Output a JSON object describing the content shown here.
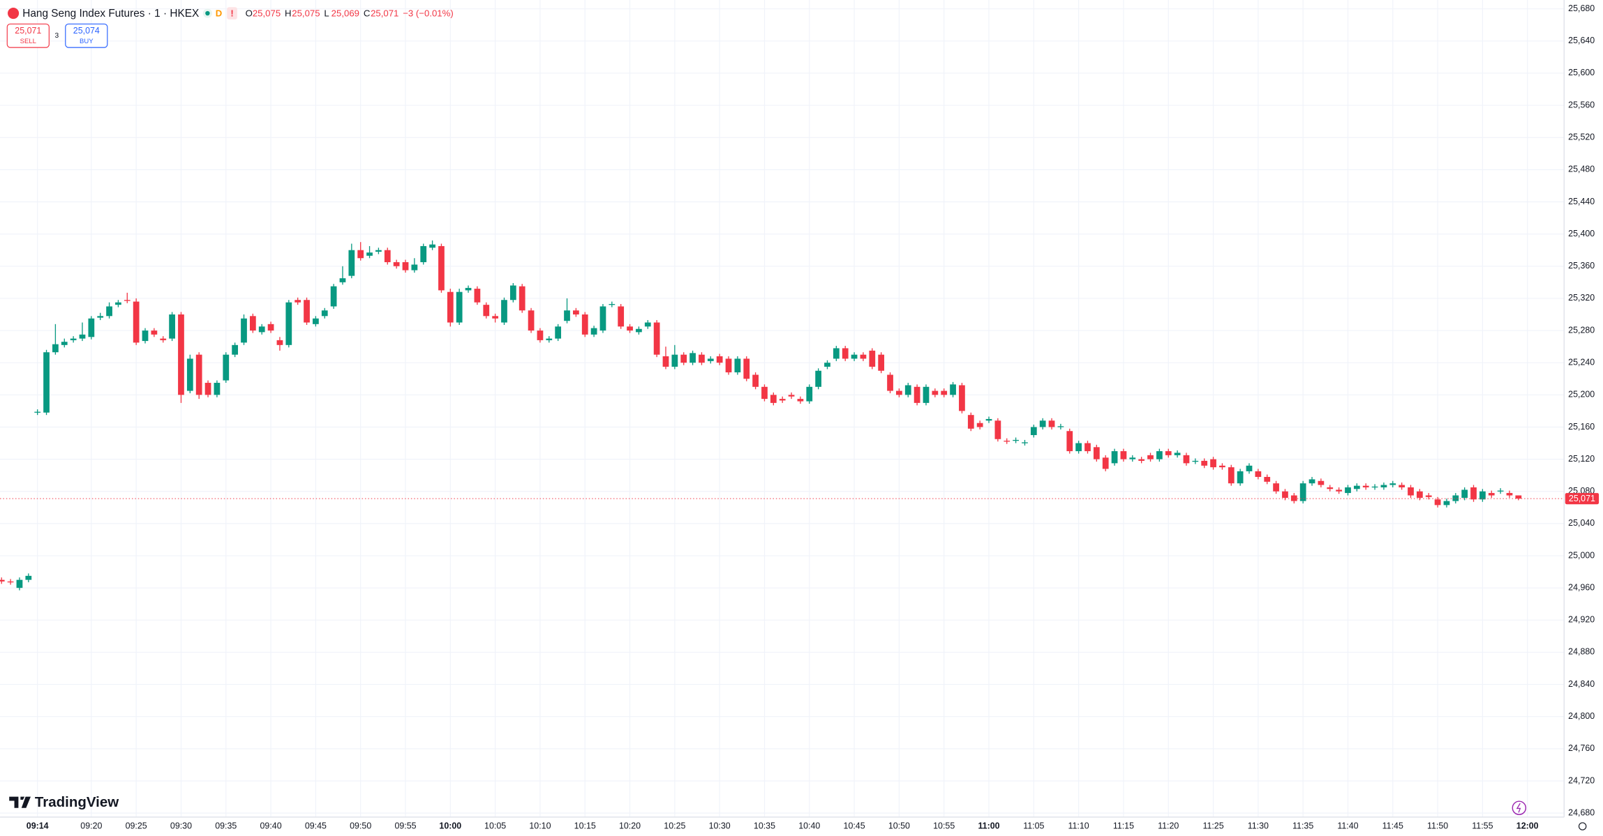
{
  "header": {
    "indicator_d": "D",
    "indicator_alert": "!",
    "ohlc": [
      {
        "key": "O",
        "value": "25,075"
      },
      {
        "key": "H",
        "value": "25,075"
      },
      {
        "key": "L",
        "value": "25,069"
      },
      {
        "key": "C",
        "value": "25,071"
      }
    ],
    "change": "−3 (−0.01%)",
    "sell_price": "25,071",
    "sell_label": "SELL",
    "spread": "3",
    "buy_price": "25,074",
    "buy_label": "BUY",
    "logo": "TradingView"
  },
  "chart_data": {
    "type": "candlestick",
    "title": "Hang Seng Index Futures · 1 · HKEX",
    "up_color": "#089981",
    "down_color": "#f23645",
    "grid": true,
    "categories": [
      null,
      null,
      null,
      null,
      "09:14",
      null,
      null,
      null,
      null,
      null,
      "09:20",
      null,
      null,
      null,
      null,
      "09:25",
      null,
      null,
      null,
      null,
      "09:30",
      null,
      null,
      null,
      null,
      "09:35",
      null,
      null,
      null,
      null,
      "09:40",
      null,
      null,
      null,
      null,
      "09:45",
      null,
      null,
      null,
      null,
      "09:50",
      null,
      null,
      null,
      null,
      "09:55",
      null,
      null,
      null,
      null,
      "10:00",
      null,
      null,
      null,
      null,
      "10:05",
      null,
      null,
      null,
      null,
      "10:10",
      null,
      null,
      null,
      null,
      "10:15",
      null,
      null,
      null,
      null,
      "10:20",
      null,
      null,
      null,
      null,
      "10:25",
      null,
      null,
      null,
      null,
      "10:30",
      null,
      null,
      null,
      null,
      "10:35",
      null,
      null,
      null,
      null,
      "10:40",
      null,
      null,
      null,
      null,
      "10:45",
      null,
      null,
      null,
      null,
      "10:50",
      null,
      null,
      null,
      null,
      "10:55",
      null,
      null,
      null,
      null,
      "11:00",
      null,
      null,
      null,
      null,
      "11:05",
      null,
      null,
      null,
      null,
      "11:10",
      null,
      null,
      null,
      null,
      "11:15",
      null,
      null,
      null,
      null,
      "11:20",
      null,
      null,
      null,
      null,
      "11:25",
      null,
      null,
      null,
      null,
      "11:30",
      null,
      null,
      null,
      null,
      "11:35",
      null,
      null,
      null,
      null,
      "11:40",
      null,
      null,
      null,
      null,
      "11:45",
      null,
      null,
      null,
      null,
      "11:50",
      null,
      null,
      null,
      null,
      "11:55",
      null,
      null,
      null,
      null,
      "12:00"
    ],
    "open": [
      24970,
      24968,
      24960,
      24970,
      25178,
      25178,
      25253,
      25262,
      25268,
      25270,
      25272,
      25296,
      25298,
      25312,
      25318,
      25316,
      25267,
      25280,
      25270,
      25270,
      25300,
      25205,
      25250,
      25215,
      25200,
      25218,
      25250,
      25265,
      25298,
      25278,
      25288,
      25268,
      25262,
      25318,
      25318,
      25288,
      25298,
      25310,
      25340,
      25348,
      25380,
      25373,
      25378,
      25380,
      25365,
      25365,
      25355,
      25365,
      25383,
      25385,
      25328,
      25290,
      25330,
      25332,
      25312,
      25298,
      25290,
      25318,
      25335,
      25305,
      25280,
      25268,
      25270,
      25292,
      25305,
      25300,
      25275,
      25280,
      25312,
      25310,
      25285,
      25278,
      25285,
      25290,
      25248,
      25235,
      25250,
      25240,
      25250,
      25242,
      25248,
      25245,
      25228,
      25245,
      25225,
      25210,
      25200,
      25195,
      25200,
      25195,
      25192,
      25210,
      25235,
      25245,
      25258,
      25245,
      25250,
      25255,
      25250,
      25225,
      25205,
      25200,
      25210,
      25190,
      25205,
      25205,
      25200,
      25212,
      25175,
      25165,
      25168,
      25168,
      25143,
      25143,
      25140,
      25150,
      25160,
      25168,
      25160,
      25155,
      25130,
      25140,
      25135,
      25122,
      25115,
      25130,
      25120,
      25120,
      25125,
      25120,
      25130,
      25125,
      25125,
      25117,
      25118,
      25120,
      25112,
      25110,
      25090,
      25105,
      25105,
      25098,
      25090,
      25080,
      25075,
      25068,
      25090,
      25093,
      25085,
      25082,
      25078,
      25083,
      25087,
      25085,
      25085,
      25088,
      25088,
      25085,
      25080,
      25075,
      25070,
      25063,
      25068,
      25072,
      25085,
      25070,
      25078,
      25080,
      25078,
      25075,
      null
    ],
    "high": [
      24973,
      24971,
      24973,
      24978,
      25182,
      25256,
      25288,
      25270,
      25273,
      25290,
      25298,
      25302,
      25315,
      25318,
      25327,
      25320,
      25283,
      25283,
      25273,
      25303,
      25303,
      25250,
      25253,
      25218,
      25218,
      25253,
      25265,
      25300,
      25301,
      25288,
      25291,
      25272,
      25318,
      25321,
      25321,
      25298,
      25308,
      25338,
      25360,
      25388,
      25390,
      25385,
      25383,
      25383,
      25368,
      25368,
      25370,
      25388,
      25392,
      25388,
      25332,
      25332,
      25336,
      25335,
      25315,
      25301,
      25321,
      25339,
      25338,
      25308,
      25283,
      25273,
      25288,
      25320,
      25308,
      25303,
      25286,
      25313,
      25316,
      25313,
      25288,
      25285,
      25293,
      25293,
      25260,
      25262,
      25253,
      25255,
      25253,
      25248,
      25251,
      25248,
      25248,
      25248,
      25228,
      25213,
      25203,
      25198,
      25203,
      25198,
      25213,
      25233,
      25243,
      25261,
      25261,
      25253,
      25253,
      25258,
      25253,
      25228,
      25208,
      25215,
      25213,
      25213,
      25208,
      25208,
      25216,
      25215,
      25178,
      25168,
      25173,
      25171,
      25146,
      25147,
      25144,
      25163,
      25171,
      25171,
      25164,
      25158,
      25143,
      25143,
      25138,
      25125,
      25133,
      25133,
      25125,
      25123,
      25128,
      25133,
      25133,
      25131,
      25128,
      25121,
      25121,
      25123,
      25115,
      25113,
      25108,
      25115,
      25108,
      25101,
      25093,
      25083,
      25078,
      25093,
      25098,
      25096,
      25088,
      25085,
      25088,
      25090,
      25090,
      25089,
      25091,
      25093,
      25091,
      25088,
      25083,
      25078,
      25073,
      25071,
      25078,
      25085,
      25088,
      25083,
      25081,
      25084,
      25081,
      25075,
      null
    ],
    "low": [
      24965,
      24964,
      24957,
      24967,
      25175,
      25175,
      25250,
      25259,
      25265,
      25267,
      25269,
      25293,
      25295,
      25309,
      25314,
      25262,
      25264,
      25272,
      25265,
      25267,
      25190,
      25202,
      25195,
      25197,
      25197,
      25215,
      25247,
      25262,
      25277,
      25275,
      25277,
      25255,
      25259,
      25312,
      25287,
      25285,
      25295,
      25307,
      25337,
      25345,
      25367,
      25370,
      25375,
      25362,
      25357,
      25352,
      25352,
      25362,
      25380,
      25327,
      25285,
      25287,
      25327,
      25312,
      25295,
      25290,
      25287,
      25315,
      25302,
      25277,
      25265,
      25265,
      25267,
      25289,
      25297,
      25272,
      25272,
      25277,
      25309,
      25282,
      25277,
      25275,
      25282,
      25247,
      25232,
      25232,
      25237,
      25237,
      25237,
      25239,
      25237,
      25225,
      25225,
      25217,
      25207,
      25192,
      25187,
      25190,
      25195,
      25189,
      25189,
      25207,
      25232,
      25242,
      25242,
      25242,
      25242,
      25232,
      25227,
      25202,
      25197,
      25197,
      25187,
      25187,
      25197,
      25197,
      25197,
      25177,
      25155,
      25157,
      25165,
      25142,
      25139,
      25140,
      25137,
      25147,
      25157,
      25157,
      25157,
      25127,
      25127,
      25127,
      25117,
      25105,
      25112,
      25117,
      25117,
      25115,
      25117,
      25117,
      25122,
      25122,
      25112,
      25114,
      25109,
      25107,
      25107,
      25087,
      25087,
      25102,
      25095,
      25089,
      25077,
      25069,
      25065,
      25065,
      25087,
      25085,
      25080,
      25077,
      25075,
      25080,
      25082,
      25082,
      25082,
      25085,
      25082,
      25072,
      25069,
      25070,
      25060,
      25060,
      25065,
      25069,
      25067,
      25067,
      25072,
      25077,
      25072,
      25069,
      null
    ],
    "close": [
      24968,
      24967,
      24970,
      24975,
      25179,
      25253,
      25263,
      25266,
      25270,
      25275,
      25295,
      25298,
      25310,
      25315,
      25317,
      25265,
      25280,
      25275,
      25268,
      25300,
      25200,
      25245,
      25200,
      25200,
      25215,
      25250,
      25262,
      25295,
      25280,
      25285,
      25280,
      25262,
      25315,
      25315,
      25290,
      25295,
      25305,
      25335,
      25345,
      25380,
      25370,
      25377,
      25380,
      25365,
      25360,
      25355,
      25362,
      25385,
      25387,
      25330,
      25290,
      25328,
      25333,
      25315,
      25298,
      25295,
      25318,
      25336,
      25305,
      25280,
      25268,
      25270,
      25285,
      25305,
      25300,
      25275,
      25283,
      25310,
      25313,
      25285,
      25280,
      25282,
      25290,
      25250,
      25235,
      25250,
      25240,
      25252,
      25240,
      25245,
      25240,
      25228,
      25245,
      25220,
      25210,
      25195,
      25190,
      25193,
      25198,
      25192,
      25210,
      25230,
      25240,
      25258,
      25245,
      25250,
      25245,
      25235,
      25230,
      25205,
      25200,
      25212,
      25190,
      25210,
      25200,
      25200,
      25213,
      25180,
      25158,
      25160,
      25170,
      25145,
      25142,
      25144,
      25141,
      25160,
      25168,
      25160,
      25161,
      25130,
      25140,
      25130,
      25120,
      25108,
      25130,
      25120,
      25122,
      25118,
      25120,
      25130,
      25125,
      25128,
      25115,
      25118,
      25112,
      25110,
      25110,
      25090,
      25105,
      25112,
      25098,
      25092,
      25080,
      25072,
      25068,
      25090,
      25095,
      25088,
      25083,
      25080,
      25085,
      25087,
      25085,
      25086,
      25088,
      25090,
      25085,
      25075,
      25072,
      25073,
      25063,
      25068,
      25075,
      25082,
      25070,
      25080,
      25075,
      25081,
      25075,
      25071,
      null
    ],
    "last_price": {
      "value": 25071,
      "label": "25,071"
    },
    "ylim": [
      24675,
      25691
    ],
    "yticks": [
      {
        "value": 24680,
        "label": "24,680"
      },
      {
        "value": 24720,
        "label": "24,720"
      },
      {
        "value": 24760,
        "label": "24,760"
      },
      {
        "value": 24800,
        "label": "24,800"
      },
      {
        "value": 24840,
        "label": "24,840"
      },
      {
        "value": 24880,
        "label": "24,880"
      },
      {
        "value": 24920,
        "label": "24,920"
      },
      {
        "value": 24960,
        "label": "24,960"
      },
      {
        "value": 25000,
        "label": "25,000"
      },
      {
        "value": 25040,
        "label": "25,040"
      },
      {
        "value": 25080,
        "label": "25,080"
      },
      {
        "value": 25120,
        "label": "25,120"
      },
      {
        "value": 25160,
        "label": "25,160"
      },
      {
        "value": 25200,
        "label": "25,200"
      },
      {
        "value": 25240,
        "label": "25,240"
      },
      {
        "value": 25280,
        "label": "25,280"
      },
      {
        "value": 25320,
        "label": "25,320"
      },
      {
        "value": 25360,
        "label": "25,360"
      },
      {
        "value": 25400,
        "label": "25,400"
      },
      {
        "value": 25440,
        "label": "25,440"
      },
      {
        "value": 25480,
        "label": "25,480"
      },
      {
        "value": 25520,
        "label": "25,520"
      },
      {
        "value": 25560,
        "label": "25,560"
      },
      {
        "value": 25600,
        "label": "25,600"
      },
      {
        "value": 25640,
        "label": "25,640"
      },
      {
        "value": 25680,
        "label": "25,680"
      }
    ]
  }
}
